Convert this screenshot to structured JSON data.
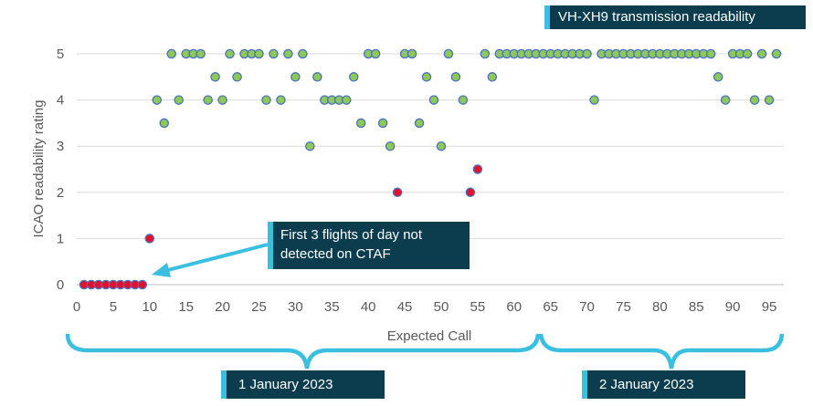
{
  "chart_data": {
    "type": "scatter",
    "title": "VH-XH9 transmission readability",
    "xlabel": "Expected Call",
    "ylabel": "ICAO readability rating",
    "xlim": [
      0,
      97
    ],
    "ylim": [
      0,
      5
    ],
    "x_ticks": [
      "0",
      "5",
      "10",
      "15",
      "20",
      "25",
      "30",
      "35",
      "40",
      "45",
      "50",
      "55",
      "60",
      "65",
      "70",
      "75",
      "80",
      "85",
      "90",
      "95"
    ],
    "y_ticks": [
      "0",
      "1",
      "2",
      "3",
      "4",
      "5"
    ],
    "grid": "horizontal",
    "colors": {
      "green_marker": "#8ec859",
      "red_marker": "#e5102a",
      "marker_edge": "#4472c4",
      "callout": "#3bbfe0",
      "box": "#0b3d4f"
    },
    "series": [
      {
        "color": "#8ec859",
        "points": [
          [
            11,
            4
          ],
          [
            12,
            3.5
          ],
          [
            13,
            5
          ],
          [
            14,
            4
          ],
          [
            15,
            5
          ],
          [
            16,
            5
          ],
          [
            17,
            5
          ],
          [
            18,
            4
          ],
          [
            19,
            4.5
          ],
          [
            20,
            4
          ],
          [
            21,
            5
          ],
          [
            22,
            4.5
          ],
          [
            23,
            5
          ],
          [
            24,
            5
          ],
          [
            25,
            5
          ],
          [
            26,
            4
          ],
          [
            27,
            5
          ],
          [
            28,
            4
          ],
          [
            29,
            5
          ],
          [
            30,
            4.5
          ],
          [
            31,
            5
          ],
          [
            32,
            3
          ],
          [
            33,
            4.5
          ],
          [
            34,
            4
          ],
          [
            35,
            4
          ],
          [
            36,
            4
          ],
          [
            37,
            4
          ],
          [
            38,
            4.5
          ],
          [
            39,
            3.5
          ],
          [
            40,
            5
          ],
          [
            41,
            5
          ],
          [
            42,
            3.5
          ],
          [
            43,
            3
          ],
          [
            45,
            5
          ],
          [
            46,
            5
          ],
          [
            47,
            3.5
          ],
          [
            48,
            4.5
          ],
          [
            49,
            4
          ],
          [
            50,
            3
          ],
          [
            51,
            5
          ],
          [
            52,
            4.5
          ],
          [
            53,
            4
          ],
          [
            56,
            5
          ],
          [
            57,
            4.5
          ],
          [
            58,
            5
          ],
          [
            59,
            5
          ],
          [
            60,
            5
          ],
          [
            61,
            5
          ],
          [
            62,
            5
          ],
          [
            63,
            5
          ],
          [
            64,
            5
          ],
          [
            65,
            5
          ],
          [
            66,
            5
          ],
          [
            67,
            5
          ],
          [
            68,
            5
          ],
          [
            69,
            5
          ],
          [
            70,
            5
          ],
          [
            71,
            4
          ],
          [
            72,
            5
          ],
          [
            73,
            5
          ],
          [
            74,
            5
          ],
          [
            75,
            5
          ],
          [
            76,
            5
          ],
          [
            77,
            5
          ],
          [
            78,
            5
          ],
          [
            79,
            5
          ],
          [
            80,
            5
          ],
          [
            81,
            5
          ],
          [
            82,
            5
          ],
          [
            83,
            5
          ],
          [
            84,
            5
          ],
          [
            85,
            5
          ],
          [
            86,
            5
          ],
          [
            87,
            5
          ],
          [
            88,
            4.5
          ],
          [
            89,
            4
          ],
          [
            90,
            5
          ],
          [
            91,
            5
          ],
          [
            92,
            5
          ],
          [
            93,
            4
          ],
          [
            94,
            5
          ],
          [
            95,
            4
          ],
          [
            96,
            5
          ]
        ]
      },
      {
        "color": "#e5102a",
        "points": [
          [
            1,
            0
          ],
          [
            2,
            0
          ],
          [
            3,
            0
          ],
          [
            4,
            0
          ],
          [
            5,
            0
          ],
          [
            6,
            0
          ],
          [
            7,
            0
          ],
          [
            8,
            0
          ],
          [
            9,
            0
          ],
          [
            10,
            1
          ],
          [
            44,
            2
          ],
          [
            54,
            2
          ],
          [
            55,
            2.5
          ]
        ]
      }
    ],
    "annotations": {
      "note": "First 3 flights of day not detected on CTAF",
      "day_labels": [
        {
          "label": "1 January 2023",
          "x_range": [
            0,
            63
          ]
        },
        {
          "label": "2 January 2023",
          "x_range": [
            63,
            97
          ]
        }
      ]
    }
  }
}
